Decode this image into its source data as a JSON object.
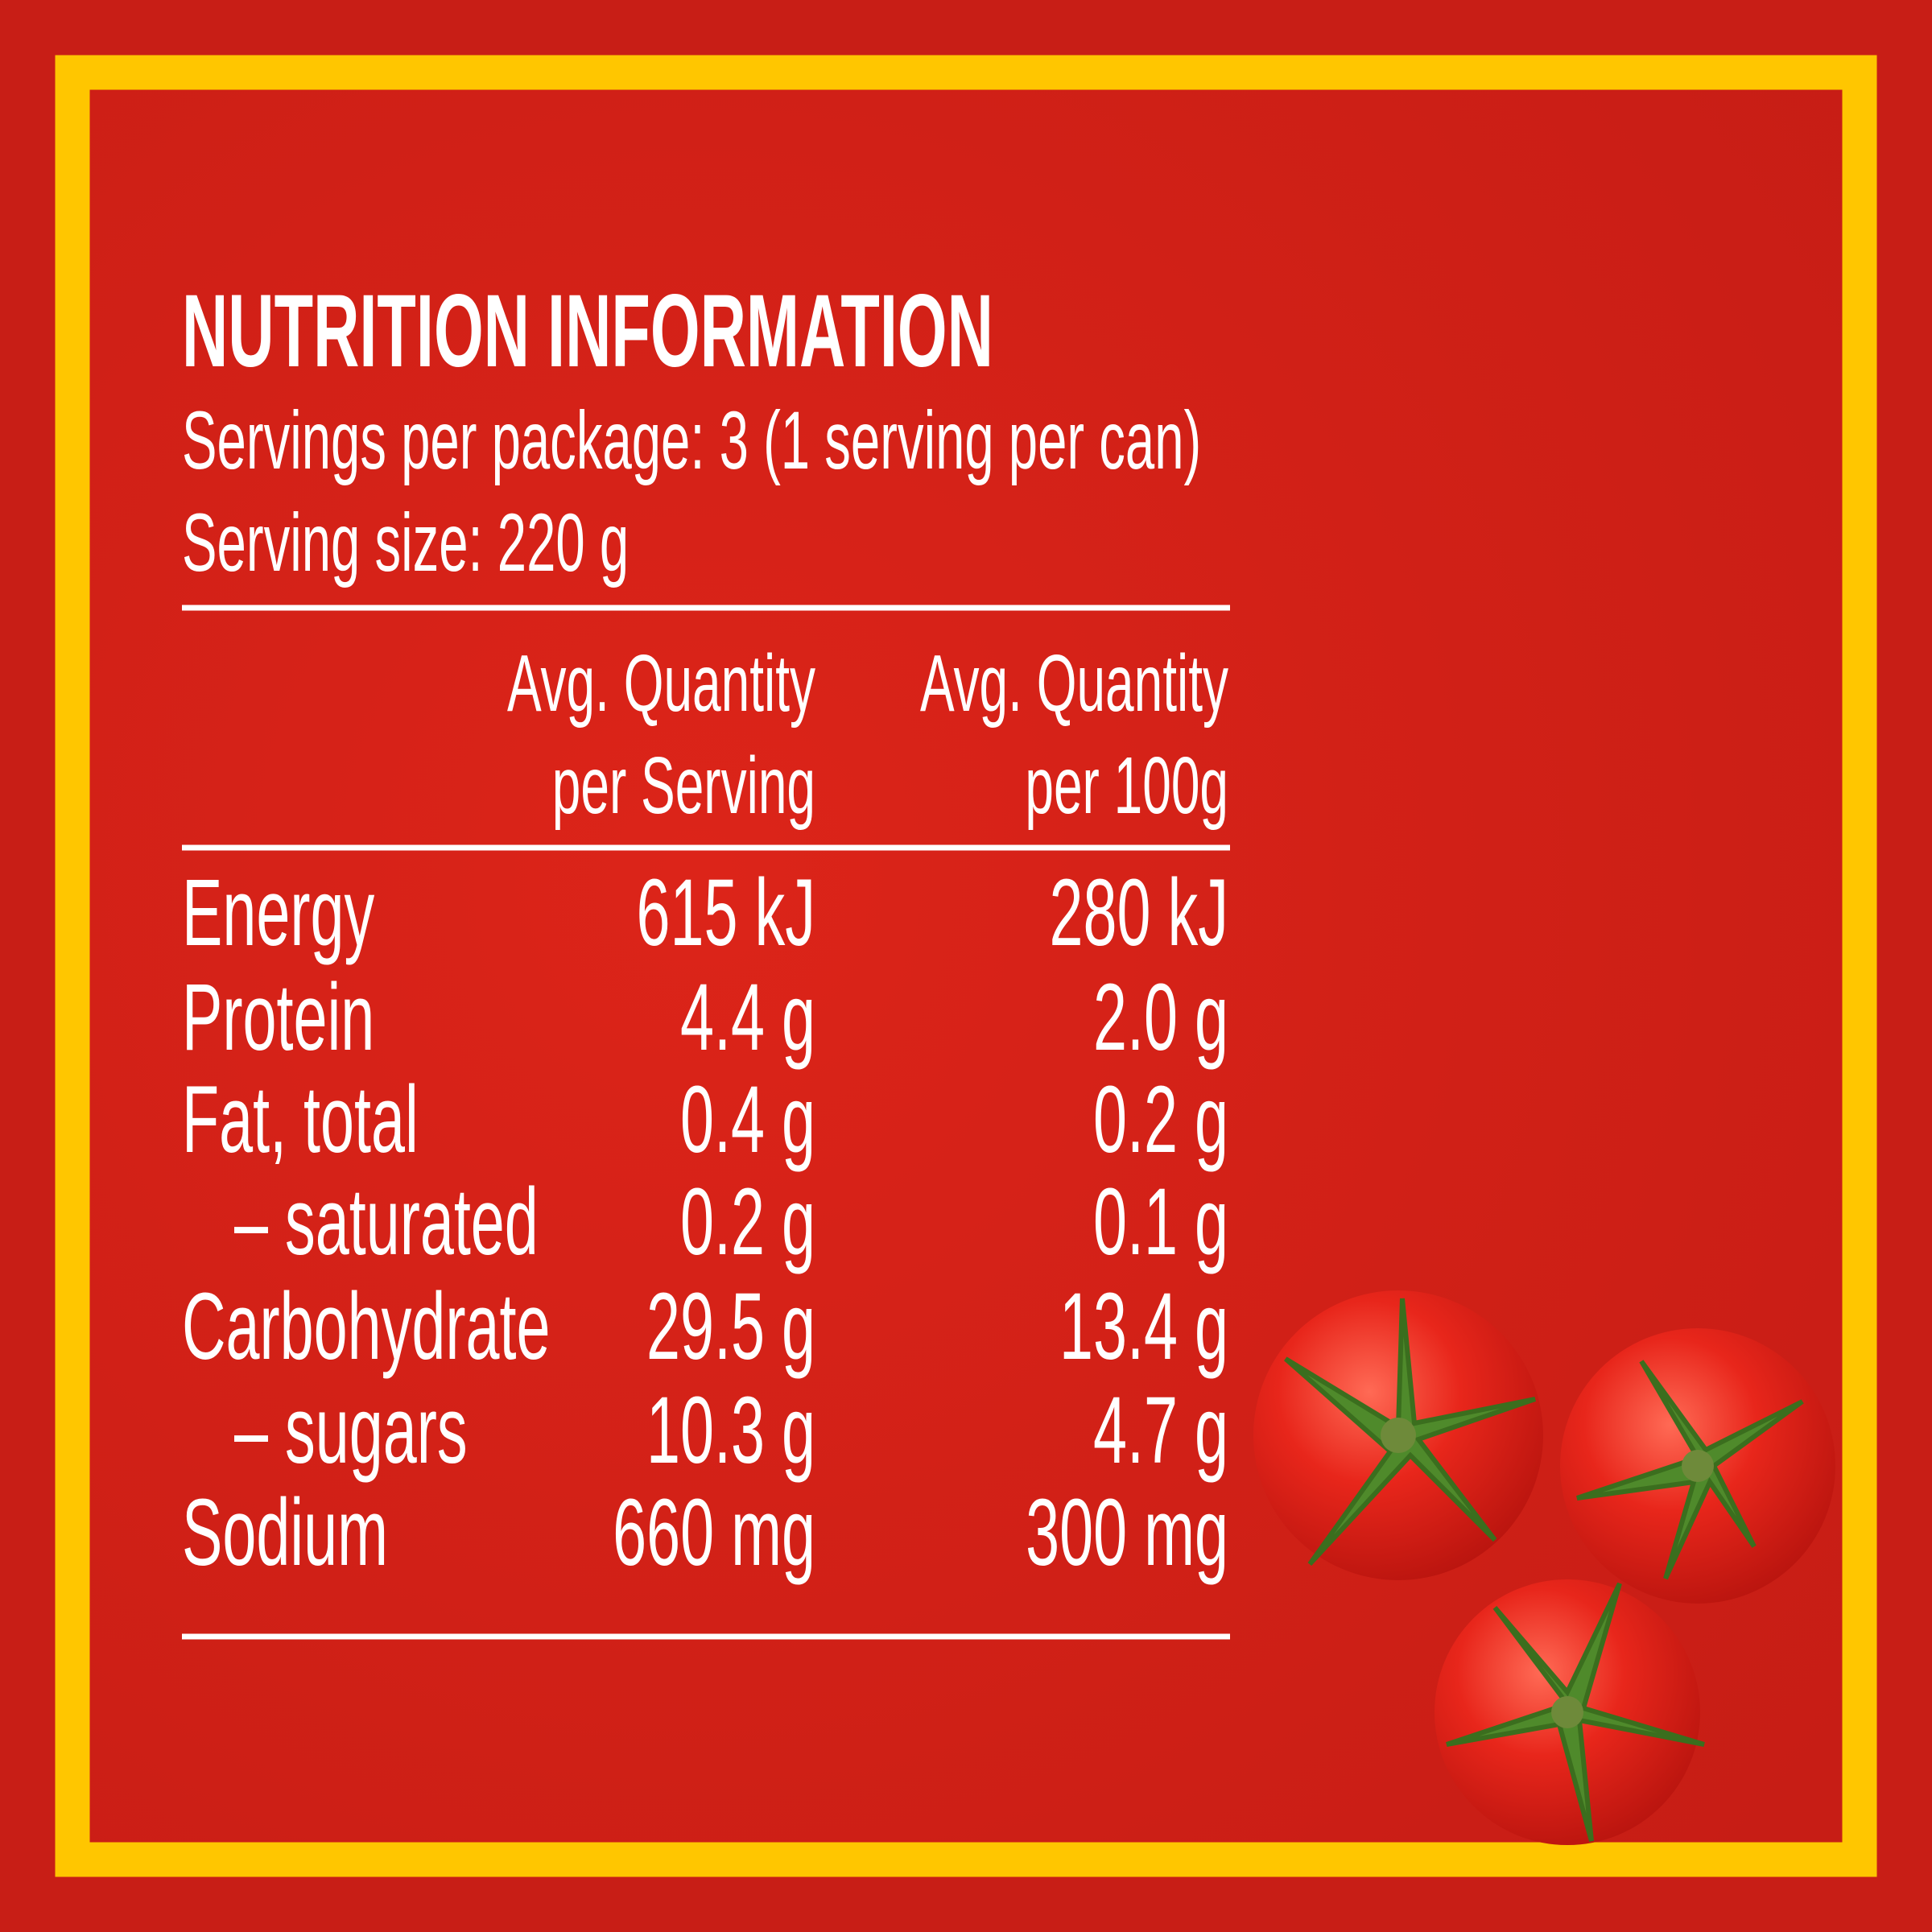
{
  "header": {
    "title": "NUTRITION INFORMATION",
    "servings_per_package": "Servings per package: 3 (1 serving per can)",
    "serving_size": "Serving size: 220 g"
  },
  "table": {
    "columns": [
      [
        "Avg. Quantity",
        "per Serving"
      ],
      [
        "Avg. Quantity",
        "per 100g"
      ]
    ],
    "rows": [
      [
        "Energy",
        "615 kJ",
        "280 kJ"
      ],
      [
        "Protein",
        "4.4 g",
        "2.0 g"
      ],
      [
        "Fat, total",
        "0.4 g",
        "0.2 g"
      ],
      [
        "– saturated",
        "0.2 g",
        "0.1 g"
      ],
      [
        "Carbohydrate",
        "29.5 g",
        "13.4 g"
      ],
      [
        "– sugars",
        "10.3 g",
        "4.7 g"
      ],
      [
        "Sodium",
        "660 mg",
        "300 mg"
      ]
    ]
  }
}
